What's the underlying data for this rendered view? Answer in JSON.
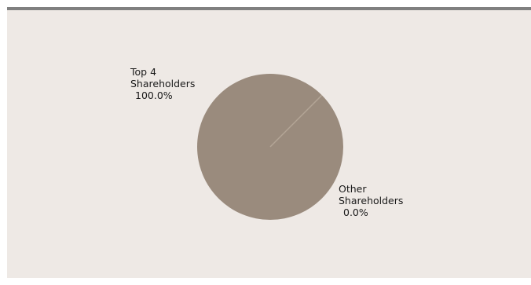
{
  "colors": {
    "panel_background": "#eee9e5",
    "top_border": "#808080",
    "slice_main": "#9a8b7d",
    "slice_divider": "#b3a596"
  },
  "chart_data": {
    "type": "pie",
    "title": "",
    "slices": [
      {
        "label_lines": [
          "Top 4",
          "Shareholders",
          "100.0%"
        ],
        "value": 100.0,
        "color": "#9a8b7d"
      },
      {
        "label_lines": [
          "Other",
          "Shareholders",
          "0.0%"
        ],
        "value": 0.0,
        "color": "#b3a596"
      }
    ]
  }
}
